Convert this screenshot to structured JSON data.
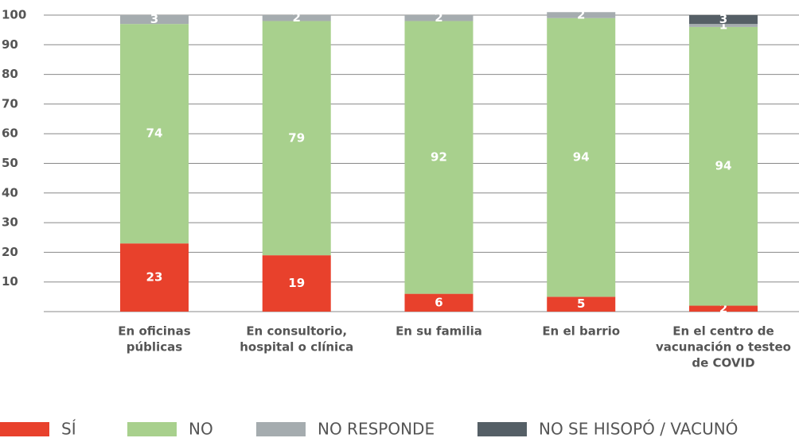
{
  "chart_data": {
    "type": "stacked_bar",
    "categories": [
      [
        "En oficinas",
        "públicas"
      ],
      [
        "En consultorio,",
        "hospital o clínica"
      ],
      [
        "En su familia"
      ],
      [
        "En el barrio"
      ],
      [
        "En el centro de",
        "vacunación o testeo",
        "de COVID"
      ]
    ],
    "series": [
      {
        "name": "SÍ",
        "color": "#e8412c",
        "values": [
          23,
          19,
          6,
          5,
          2
        ]
      },
      {
        "name": "NO",
        "color": "#a8d08d",
        "values": [
          74,
          79,
          92,
          94,
          94
        ]
      },
      {
        "name": "NO RESPONDE",
        "color": "#a5acaf",
        "values": [
          3,
          2,
          2,
          2,
          1
        ]
      },
      {
        "name": "NO SE HISOPÓ / VACUNÓ",
        "color": "#555f66",
        "values": [
          null,
          null,
          null,
          null,
          3
        ]
      }
    ],
    "ylim": [
      0,
      100
    ],
    "yticks": [
      10,
      20,
      30,
      40,
      50,
      60,
      70,
      80,
      90,
      100
    ],
    "grid": true,
    "legend": "bottom"
  }
}
